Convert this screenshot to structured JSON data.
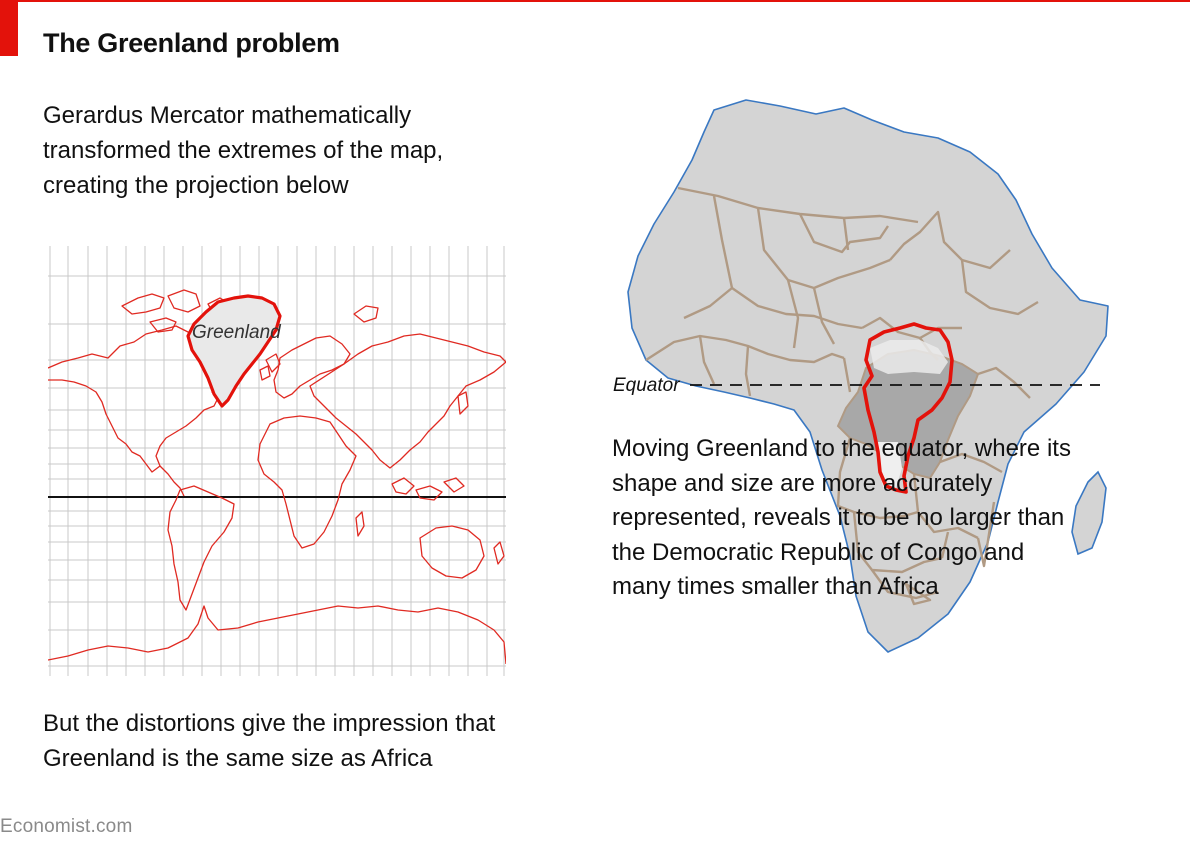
{
  "header": {
    "title": "The Greenland problem"
  },
  "text": {
    "intro": "Gerardus Mercator mathematically transformed the extremes of the map, creating the projection below",
    "left_caption": "But the distortions give the impression that Greenland is the same size as Africa",
    "right_caption": "Moving Greenland to the equator, where its shape and size are more accurately represented, reveals it to be no larger than the Democratic Republic of Congo and many times smaller than Africa",
    "source": "Economist.com"
  },
  "map_labels": {
    "greenland": "Greenland",
    "equator": "Equator"
  },
  "colors": {
    "accent_red": "#e3120b",
    "land_grey": "#d4d4d4",
    "border_tan": "#b09a84",
    "coast_blue": "#3a78c2",
    "congo_dark": "#a8a8a8",
    "grid": "#c8c8c8"
  }
}
